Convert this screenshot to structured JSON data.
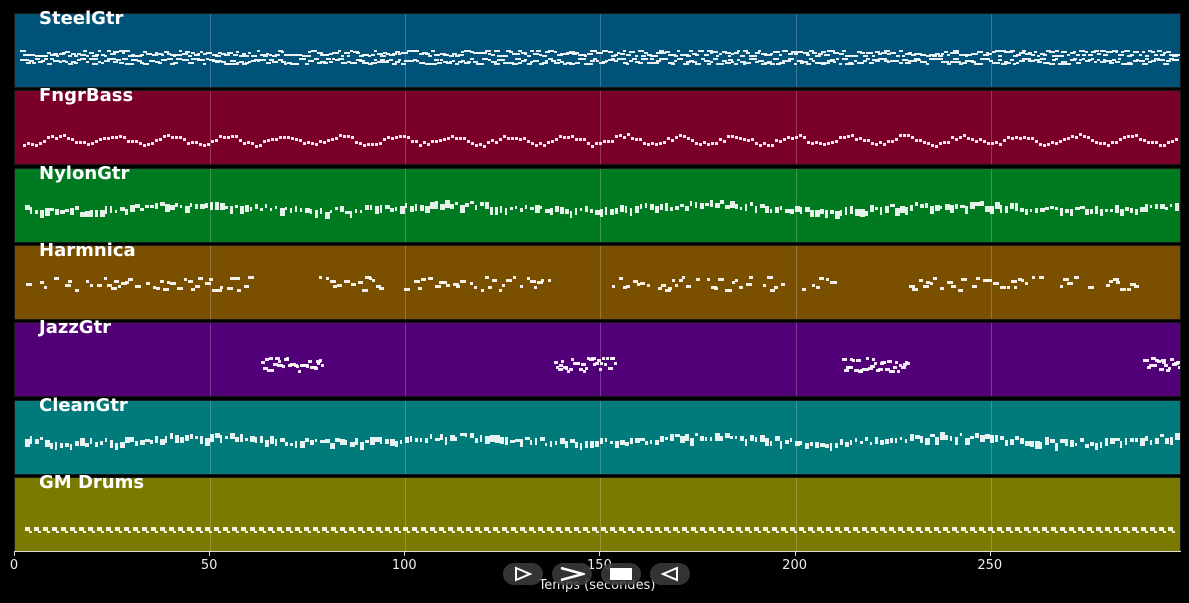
{
  "tracks": [
    {
      "name": "SteelGtr",
      "color": "#005278",
      "pattern": "dense"
    },
    {
      "name": "FngrBass",
      "color": "#7a0029",
      "pattern": "wave"
    },
    {
      "name": "NylonGtr",
      "color": "#007a20",
      "pattern": "bars"
    },
    {
      "name": "Harmnica",
      "color": "#7a5000",
      "pattern": "phrases"
    },
    {
      "name": "JazzGtr",
      "color": "#520078",
      "pattern": "solo"
    },
    {
      "name": "CleanGtr",
      "color": "#007a7a",
      "pattern": "bars"
    },
    {
      "name": "GM Drums",
      "color": "#7a7a00",
      "pattern": "drums"
    }
  ],
  "axis": {
    "ticks": [
      "0",
      "50",
      "100",
      "150",
      "200",
      "250"
    ],
    "tick_values": [
      0,
      50,
      100,
      150,
      200,
      250
    ],
    "max": 299,
    "label": "Temps (secondes)"
  },
  "player": {
    "buttons": [
      {
        "name": "play-button",
        "icon": "play-outline-icon"
      },
      {
        "name": "forward-button",
        "icon": "chevron-right-icon"
      },
      {
        "name": "stop-button",
        "icon": "stop-icon"
      },
      {
        "name": "rewind-button",
        "icon": "play-reverse-icon"
      }
    ]
  }
}
